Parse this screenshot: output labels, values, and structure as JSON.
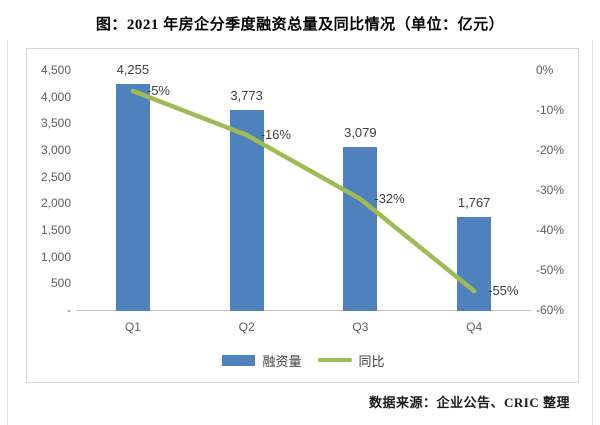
{
  "title": "图：2021 年房企分季度融资总量及同比情况（单位：亿元）",
  "source": "数据来源：企业公告、CRIC 整理",
  "colors": {
    "bar": "#4f81bd",
    "line": "#9fbb54",
    "axis_text": "#5f5f5f",
    "data_label": "#404040",
    "chart_border": "#d9d9d9",
    "axis_line": "#c6c6c6"
  },
  "chart_data": {
    "type": "bar",
    "subtype": "combo-bar-line",
    "title": "图：2021 年房企分季度融资总量及同比情况（单位：亿元）",
    "categories": [
      "Q1",
      "Q2",
      "Q3",
      "Q4"
    ],
    "series": [
      {
        "name": "融资量",
        "type": "bar",
        "axis": "left",
        "values": [
          4255,
          3773,
          3079,
          1767
        ],
        "labels": [
          "4,255",
          "3,773",
          "3,079",
          "1,767"
        ],
        "color": "#4f81bd"
      },
      {
        "name": "同比",
        "type": "line",
        "axis": "right",
        "values": [
          -5,
          -16,
          -32,
          -55
        ],
        "labels": [
          "-5%",
          "-16%",
          "-32%",
          "-55%"
        ],
        "color": "#9fbb54"
      }
    ],
    "left_axis": {
      "min": 0,
      "max": 4500,
      "step": 500,
      "ticks": [
        "4,500",
        "4,000",
        "3,500",
        "3,000",
        "2,500",
        "2,000",
        "1,500",
        "1,000",
        "500",
        "-"
      ]
    },
    "right_axis": {
      "min": -60,
      "max": 0,
      "step": 10,
      "ticks": [
        "0%",
        "-10%",
        "-20%",
        "-30%",
        "-40%",
        "-50%",
        "-60%"
      ]
    },
    "grid": false,
    "legend_position": "bottom"
  }
}
